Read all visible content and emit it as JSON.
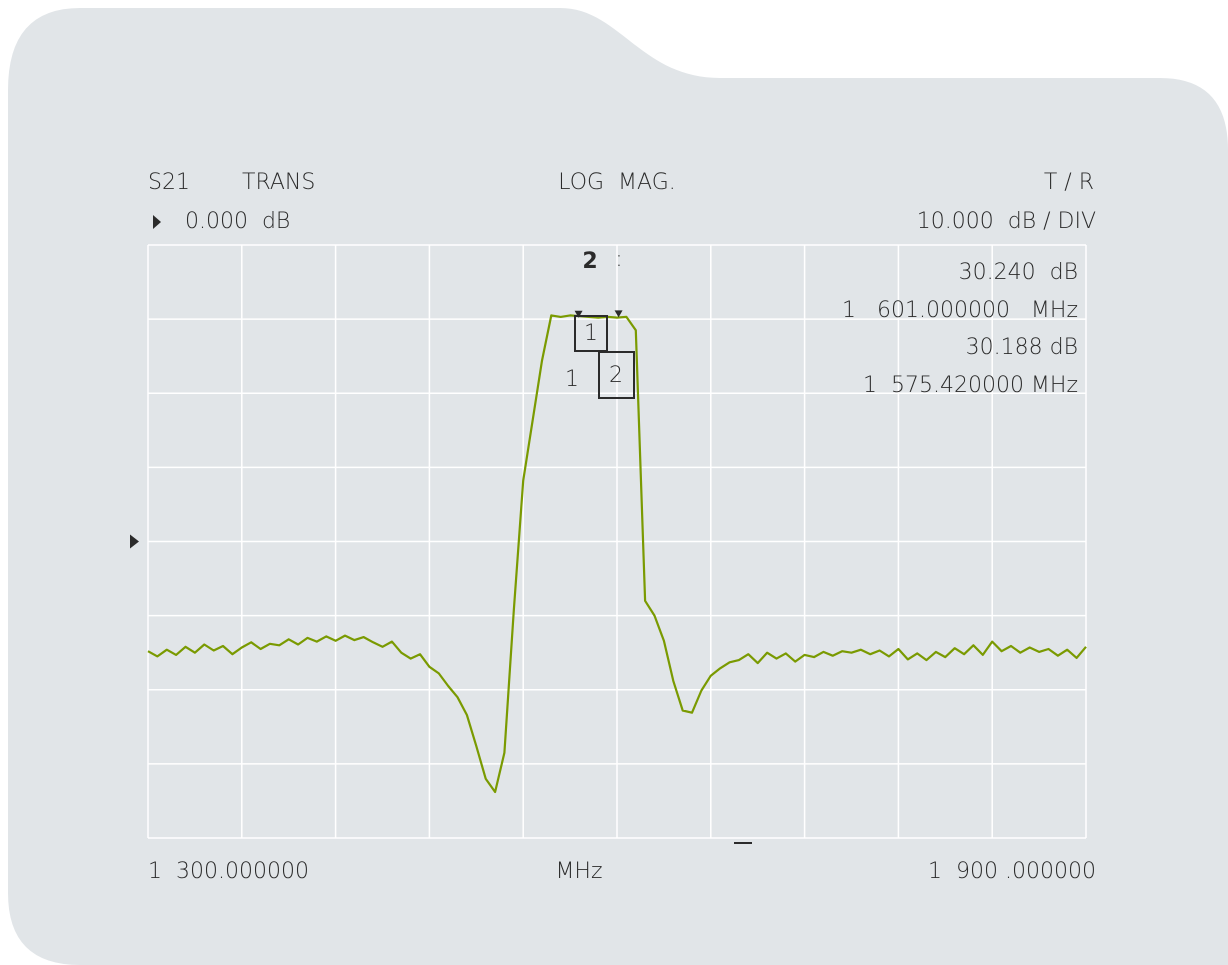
{
  "chart_data": {
    "type": "line",
    "parameter": "S21",
    "measurement": "TRANS",
    "format": "LOG  MAG.",
    "receiver": "T / R",
    "reference": {
      "value": 0,
      "label": "0.000  dB"
    },
    "scale": {
      "value": 10,
      "label": "10.000  dB / DIV"
    },
    "x_label": "MHz",
    "xlim": [
      1300,
      1900
    ],
    "xticks": [
      {
        "value": 1300,
        "label": "1  300.000000"
      },
      {
        "value": 1900,
        "label": "1  900 .000000"
      }
    ],
    "xgrid": [
      1300,
      1360,
      1420,
      1480,
      1540,
      1600,
      1660,
      1720,
      1780,
      1840,
      1900
    ],
    "ylim": [
      -40,
      40
    ],
    "ygrid": [
      -40,
      -30,
      -20,
      -10,
      0,
      10,
      20,
      30,
      40
    ],
    "active_marker": "2",
    "active_marker_separator": ":",
    "markers": [
      {
        "label": "1",
        "x": 1601,
        "value": 30.24,
        "value_label": "30.240  dB",
        "x_label": "1   601.000000   MHz"
      },
      {
        "label": "2",
        "x": 1575.42,
        "value": 30.188,
        "value_label": "30.188 dB",
        "x_label": "1  575.420000 MHz"
      }
    ],
    "marker_note": "1",
    "series": [
      {
        "color": "#7a9a01",
        "x": [
          1300,
          1306,
          1312,
          1318,
          1324,
          1330,
          1336,
          1342,
          1348,
          1354,
          1360,
          1366,
          1372,
          1378,
          1384,
          1390,
          1396,
          1402,
          1408,
          1414,
          1420,
          1426,
          1432,
          1438,
          1444,
          1450,
          1456,
          1462,
          1468,
          1474,
          1480,
          1486,
          1492,
          1498,
          1504,
          1510,
          1516,
          1522,
          1528,
          1534,
          1540,
          1546,
          1552,
          1558,
          1564,
          1570,
          1576,
          1582,
          1588,
          1594,
          1600,
          1606,
          1612,
          1618,
          1624,
          1630,
          1636,
          1642,
          1648,
          1654,
          1660,
          1666,
          1672,
          1678,
          1684,
          1690,
          1696,
          1702,
          1708,
          1714,
          1720,
          1726,
          1732,
          1738,
          1744,
          1750,
          1756,
          1762,
          1768,
          1774,
          1780,
          1786,
          1792,
          1798,
          1804,
          1810,
          1816,
          1822,
          1828,
          1834,
          1840,
          1846,
          1852,
          1858,
          1864,
          1870,
          1876,
          1882,
          1888,
          1894,
          1900
        ],
        "values": [
          -14.8,
          -15.5,
          -14.6,
          -15.3,
          -14.2,
          -15.0,
          -13.9,
          -14.7,
          -14.1,
          -15.2,
          -14.3,
          -13.6,
          -14.5,
          -13.8,
          -14.0,
          -13.2,
          -13.9,
          -13.0,
          -13.5,
          -12.8,
          -13.4,
          -12.7,
          -13.3,
          -12.9,
          -13.6,
          -14.2,
          -13.5,
          -15.0,
          -15.8,
          -15.2,
          -16.9,
          -17.8,
          -19.5,
          -21.0,
          -23.4,
          -27.6,
          -32.0,
          -33.8,
          -28.5,
          -9.3,
          8.2,
          16.3,
          24.4,
          30.5,
          30.3,
          30.5,
          30.4,
          30.3,
          30.2,
          30.3,
          30.2,
          30.3,
          28.5,
          -8.0,
          -10.0,
          -13.4,
          -18.8,
          -22.8,
          -23.1,
          -20.1,
          -18.1,
          -17.1,
          -16.3,
          -16.0,
          -15.2,
          -16.4,
          -15.0,
          -15.8,
          -15.1,
          -16.2,
          -15.3,
          -15.6,
          -14.9,
          -15.4,
          -14.8,
          -15.0,
          -14.6,
          -15.2,
          -14.7,
          -15.5,
          -14.5,
          -15.9,
          -15.1,
          -16.0,
          -14.9,
          -15.6,
          -14.4,
          -15.2,
          -14.0,
          -15.3,
          -13.5,
          -14.8,
          -14.1,
          -15.0,
          -14.3,
          -14.9,
          -14.5,
          -15.4,
          -14.6,
          -15.7,
          -14.2
        ]
      }
    ]
  }
}
